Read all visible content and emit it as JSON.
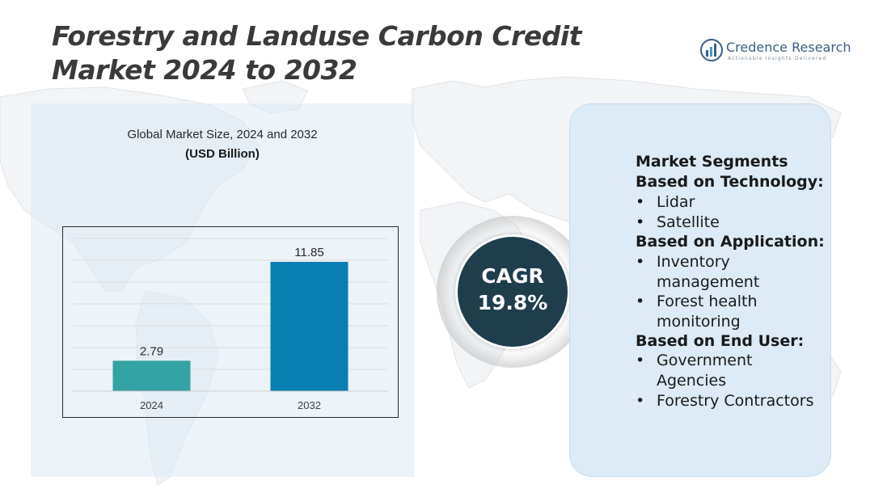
{
  "title": "Forestry and Landuse Carbon Credit Market 2024 to 2032",
  "logo": {
    "name": "Credence Research",
    "tagline": "Actionable Insights Delivered"
  },
  "chart_data": {
    "type": "bar",
    "title": "Global Market Size, 2024 and 2032",
    "unit_label": "(USD Billion)",
    "categories": [
      "2024",
      "2032"
    ],
    "values": [
      2.79,
      11.85
    ],
    "value_labels": [
      "2.79",
      "11.85"
    ],
    "colors": [
      "#33a3a3",
      "#0a7fb1"
    ],
    "ylim": [
      0,
      14
    ],
    "grid": true,
    "legend": "none"
  },
  "cagr": {
    "label": "CAGR",
    "value": "19.8%"
  },
  "segments": {
    "heading": "Market Segments",
    "technology": {
      "heading": "Based on Technology:",
      "items": [
        "Lidar",
        "Satellite"
      ]
    },
    "application": {
      "heading": "Based on Application:",
      "items": [
        "Inventory management",
        "Forest health monitoring"
      ]
    },
    "end_user": {
      "heading": "Based on End User:",
      "items": [
        "Government Agencies",
        "Forestry Contractors"
      ]
    },
    "bullet": "•"
  },
  "colors": {
    "title": "#3a3a3a",
    "cagr_bg": "#1e3e4c",
    "panel": "#dcebf5",
    "accent": "#0a7fb1"
  }
}
